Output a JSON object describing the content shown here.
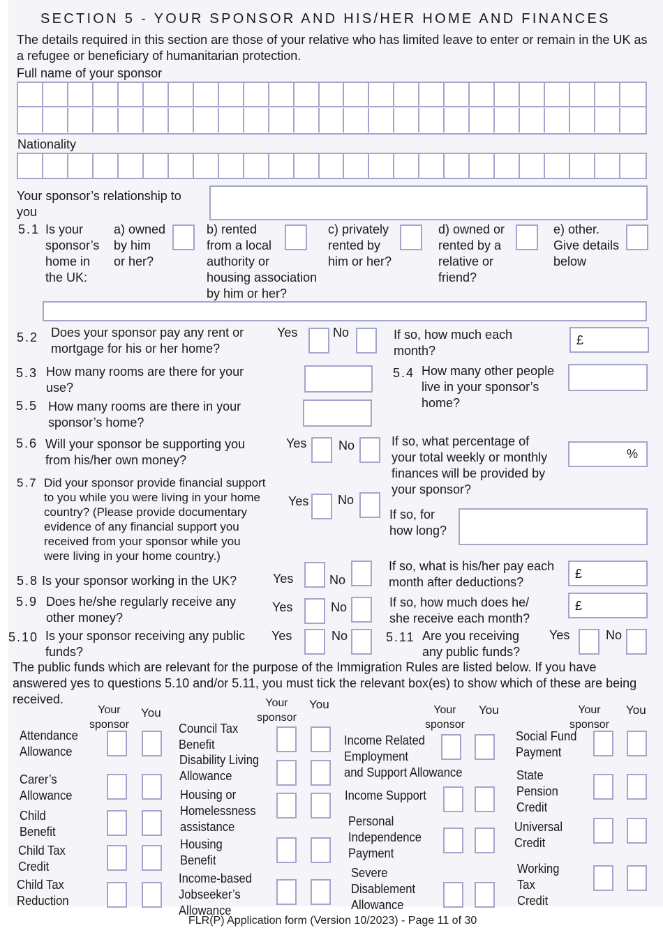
{
  "section_title": "SECTION 5 - YOUR SPONSOR AND HIS/HER HOME AND FINANCES",
  "intro": "The details required in this section are those of your relative who has limited leave to enter or remain in the UK as a refugee or beneficiary of humanitarian protection.",
  "full_name_label": "Full name of your sponsor",
  "nationality_label": "Nationality",
  "relationship_label": "Your sponsor’s relationship to\nyou",
  "q5_1": {
    "number": "5.1",
    "text": "Is your\nsponsor’s\nhome in\nthe UK:",
    "options": [
      {
        "label": "a) owned\nby him\nor her?"
      },
      {
        "label": "b) rented\nfrom a local\nauthority or\nhousing association\nby him or her?"
      },
      {
        "label": "c) privately\nrented by\nhim or her?"
      },
      {
        "label": "d) owned or\nrented by a\nrelative or\nfriend?"
      },
      {
        "label": "e) other.\nGive details\nbelow"
      }
    ]
  },
  "yes": "Yes",
  "no": "No",
  "currency_symbol": "£",
  "percent_symbol": "%",
  "q5_2": {
    "number": "5.2",
    "text": "Does your sponsor pay any rent or\nmortgage for his or her home?",
    "followup": "If so, how much each\nmonth?"
  },
  "q5_3": {
    "number": "5.3",
    "text": "How many rooms are there for your\nuse?"
  },
  "q5_4": {
    "number": "5.4",
    "text": "How many other people\nlive in your sponsor’s\nhome?"
  },
  "q5_5": {
    "number": "5.5",
    "text": "How many rooms are there in your\nsponsor’s home?"
  },
  "q5_6": {
    "number": "5.6",
    "text": "Will your sponsor be supporting you\nfrom his/her own money?",
    "followup": "If so, what percentage of\nyour total weekly or monthly\nfinances will be provided by\nyour sponsor?"
  },
  "q5_7": {
    "number": "5.7",
    "text": "Did your sponsor provide financial support\nto you while you were living in your home\ncountry? (Please provide documentary\nevidence of any financial support you\nreceived from your sponsor while you\nwere living in your home country.)",
    "followup": "If so, for\nhow long?"
  },
  "q5_8": {
    "number": "5.8",
    "text": "Is your sponsor working in the UK?",
    "followup": "If so, what is his/her pay each\nmonth after deductions?"
  },
  "q5_9": {
    "number": "5.9",
    "text": "Does he/she regularly receive any\nother money?",
    "followup": "If so, how much does he/\nshe receive each month?"
  },
  "q5_10": {
    "number": "5.10",
    "text": "Is your sponsor receiving any public\nfunds?"
  },
  "q5_11": {
    "number": "5.11",
    "text": "Are you receiving\nany public funds?"
  },
  "public_funds_text": "The public funds which are relevant for the purpose of the Immigration Rules are listed below. If you have answered yes to questions 5.10 and/or 5.11, you must tick the relevant box(es) to show which of these are being received.",
  "col_sponsor": "Your\nsponsor",
  "col_you": "You",
  "benefits": [
    "Attendance\nAllowance",
    "Carer’s\nAllowance",
    "Child\nBenefit",
    "Child Tax\nCredit",
    "Child Tax\nReduction",
    "Council Tax\nBenefit",
    "Disability Living\nAllowance",
    "Housing or\nHomelessness\nassistance",
    "Housing\nBenefit",
    "Income-based\nJobseeker’s\nAllowance",
    "Income Related\nEmployment\nand Support Allowance",
    "Income Support",
    "Personal\nIndependence\nPayment",
    "Severe\nDisablement\nAllowance",
    "Social Fund\nPayment",
    "State\nPension\nCredit",
    "Universal\nCredit",
    "Working\nTax\nCredit"
  ],
  "footer": "FLR(P) Application form (Version 10/2023) - Page 11 of 30"
}
